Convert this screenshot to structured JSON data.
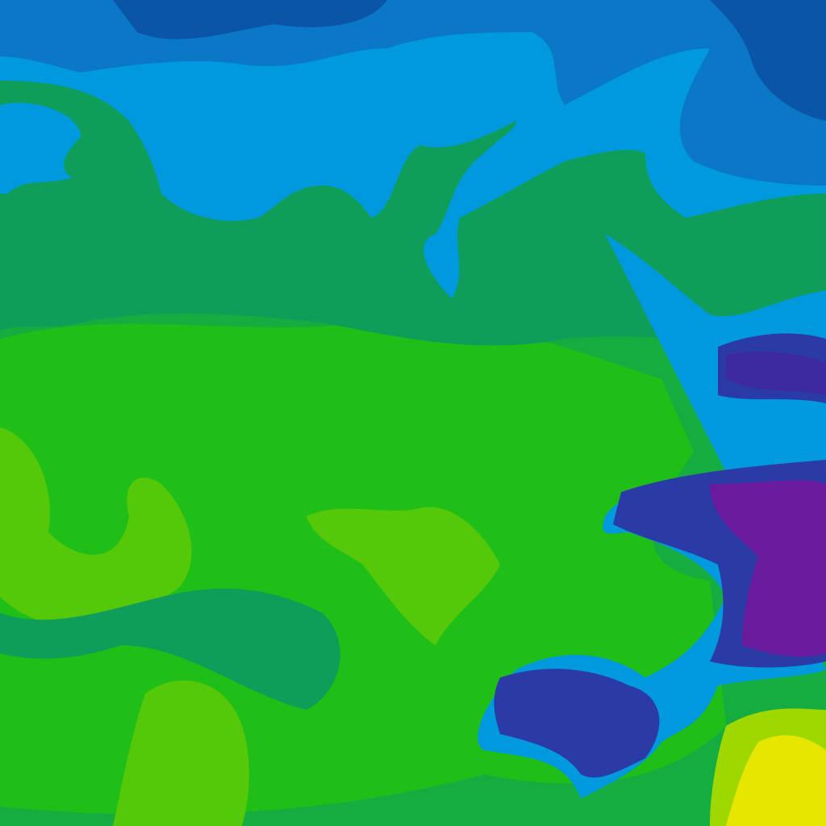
{
  "map": {
    "type": "weather-contour-tile",
    "palette": {
      "deep_blue": "#0b55a8",
      "mid_blue": "#0a78c6",
      "light_blue": "#0099dd",
      "teal_green": "#0e9e5a",
      "green": "#16ad40",
      "bright_green": "#20bf18",
      "yellow_green": "#55c80a",
      "lime": "#9ed800",
      "yellow": "#e6e600",
      "navy": "#2a3aa6",
      "indigo": "#3d2aa0",
      "purple": "#6a1a9c"
    }
  }
}
